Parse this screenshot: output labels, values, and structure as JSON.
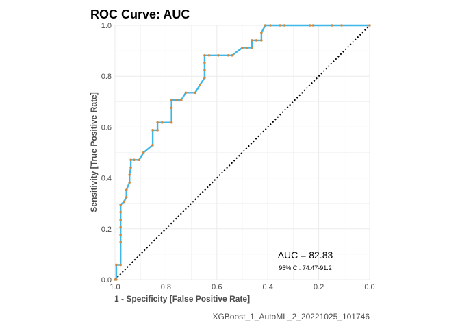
{
  "colors": {
    "roc_line": "#3fb7e8",
    "roc_points": "#d28a3f",
    "reference_line": "#000000",
    "grid": "#ebebeb",
    "text": "#4d4d4d"
  },
  "chart_data": {
    "type": "line",
    "title": "ROC Curve: AUC",
    "xlabel": "1 - Specificity [False Positive Rate]",
    "ylabel": "Sensitivity [True Positive Rate]",
    "x_reversed": true,
    "xlim": [
      1.0,
      0.0
    ],
    "ylim": [
      0.0,
      1.0
    ],
    "xticks": [
      {
        "value": 1.0,
        "label": "1.0"
      },
      {
        "value": 0.8,
        "label": "0.8"
      },
      {
        "value": 0.6,
        "label": "0.6"
      },
      {
        "value": 0.4,
        "label": "0.4"
      },
      {
        "value": 0.2,
        "label": "0.2"
      },
      {
        "value": 0.0,
        "label": "0.0"
      }
    ],
    "yticks": [
      {
        "value": 0.0,
        "label": "0.0"
      },
      {
        "value": 0.2,
        "label": "0.2"
      },
      {
        "value": 0.4,
        "label": "0.4"
      },
      {
        "value": 0.6,
        "label": "0.6"
      },
      {
        "value": 0.8,
        "label": "0.8"
      },
      {
        "value": 1.0,
        "label": "1.0"
      }
    ],
    "grid": true,
    "annotations": {
      "auc": "AUC = 82.83",
      "ci": "95% CI: 74.47-91.2"
    },
    "caption": "XGBoost_1_AutoML_2_20221025_101746",
    "series": [
      {
        "points": [
          [
            1.0,
            0.0
          ],
          [
            0.995,
            0.0
          ],
          [
            0.995,
            0.058
          ],
          [
            0.978,
            0.058
          ],
          [
            0.978,
            0.147
          ],
          [
            0.978,
            0.176
          ],
          [
            0.978,
            0.206
          ],
          [
            0.978,
            0.235
          ],
          [
            0.978,
            0.265
          ],
          [
            0.978,
            0.294
          ],
          [
            0.965,
            0.306
          ],
          [
            0.955,
            0.324
          ],
          [
            0.955,
            0.353
          ],
          [
            0.943,
            0.382
          ],
          [
            0.943,
            0.412
          ],
          [
            0.938,
            0.441
          ],
          [
            0.938,
            0.471
          ],
          [
            0.925,
            0.471
          ],
          [
            0.905,
            0.471
          ],
          [
            0.888,
            0.5
          ],
          [
            0.852,
            0.529
          ],
          [
            0.852,
            0.588
          ],
          [
            0.833,
            0.588
          ],
          [
            0.833,
            0.618
          ],
          [
            0.815,
            0.618
          ],
          [
            0.778,
            0.618
          ],
          [
            0.778,
            0.676
          ],
          [
            0.778,
            0.706
          ],
          [
            0.76,
            0.706
          ],
          [
            0.74,
            0.706
          ],
          [
            0.722,
            0.735
          ],
          [
            0.685,
            0.735
          ],
          [
            0.667,
            0.765
          ],
          [
            0.648,
            0.794
          ],
          [
            0.648,
            0.824
          ],
          [
            0.648,
            0.853
          ],
          [
            0.648,
            0.882
          ],
          [
            0.63,
            0.882
          ],
          [
            0.594,
            0.882
          ],
          [
            0.555,
            0.882
          ],
          [
            0.54,
            0.882
          ],
          [
            0.5,
            0.912
          ],
          [
            0.482,
            0.912
          ],
          [
            0.462,
            0.912
          ],
          [
            0.462,
            0.941
          ],
          [
            0.445,
            0.941
          ],
          [
            0.425,
            0.941
          ],
          [
            0.425,
            0.971
          ],
          [
            0.41,
            1.0
          ],
          [
            0.39,
            1.0
          ],
          [
            0.352,
            1.0
          ],
          [
            0.335,
            1.0
          ],
          [
            0.235,
            1.0
          ],
          [
            0.222,
            1.0
          ],
          [
            0.148,
            1.0
          ],
          [
            0.11,
            1.0
          ],
          [
            0.0,
            1.0
          ]
        ]
      }
    ],
    "reference": [
      [
        1.0,
        0.0
      ],
      [
        0.0,
        1.0
      ]
    ]
  }
}
